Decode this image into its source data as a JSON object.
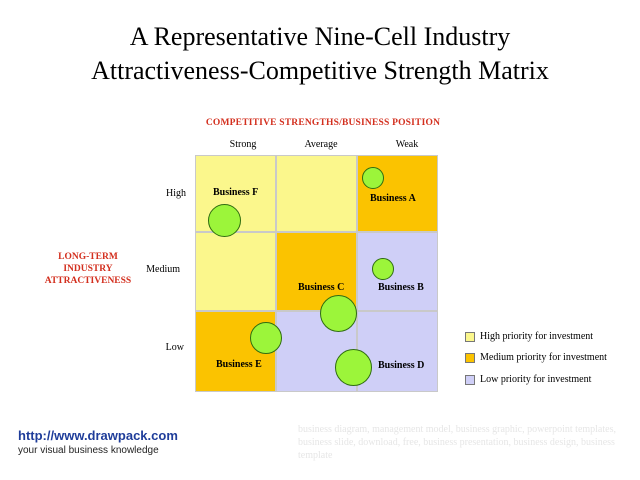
{
  "title": {
    "line1": "A Representative Nine-Cell Industry",
    "line2": "Attractiveness-Competitive Strength Matrix"
  },
  "x_axis": {
    "title": "COMPETITIVE  STRENGTHS/BUSINESS POSITION",
    "columns": [
      "Strong",
      "Average",
      "Weak"
    ]
  },
  "y_axis": {
    "title_lines": [
      "LONG-TERM",
      "INDUSTRY",
      "ATTRACTIVENESS"
    ],
    "rows": [
      "High",
      "Medium",
      "Low"
    ]
  },
  "grid": [
    [
      "high",
      "high",
      "medium"
    ],
    [
      "high",
      "medium",
      "low"
    ],
    [
      "medium",
      "low",
      "low"
    ]
  ],
  "priority_colors": {
    "high": "#fbf78c",
    "medium": "#fbc300",
    "low": "#cfcff7"
  },
  "businesses": [
    {
      "label": "Business F",
      "attractiveness": "High",
      "strength": "Strong"
    },
    {
      "label": "Business A",
      "attractiveness": "High",
      "strength": "Weak"
    },
    {
      "label": "Business C",
      "attractiveness": "Medium",
      "strength": "Average"
    },
    {
      "label": "Business B",
      "attractiveness": "Medium",
      "strength": "Weak"
    },
    {
      "label": "Business E",
      "attractiveness": "Low",
      "strength": "Strong"
    },
    {
      "label": "Business D",
      "attractiveness": "Low",
      "strength": "Weak"
    }
  ],
  "legend": [
    {
      "label": "High priority  for investment",
      "level": "high"
    },
    {
      "label": "Medium priority  for investment",
      "level": "medium"
    },
    {
      "label": "Low priority  for investment",
      "level": "low"
    }
  ],
  "footer": {
    "url": "http://www.drawpack.com",
    "tagline": "your visual business knowledge",
    "watermark": "business diagram, management model, business graphic, powerpoint templates, business slide, download, free, business presentation, business design, business template"
  }
}
